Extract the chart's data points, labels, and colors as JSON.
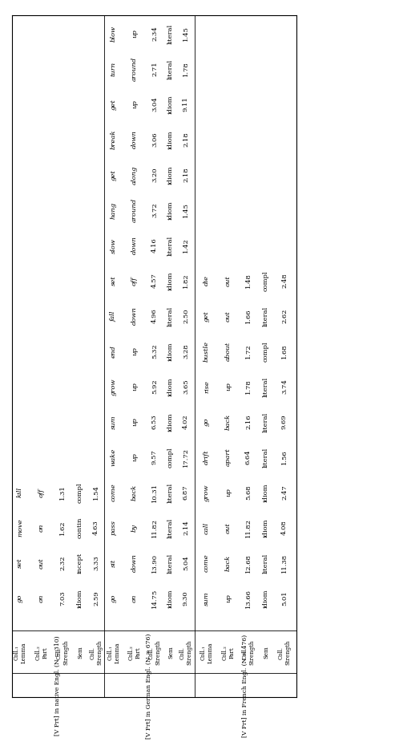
{
  "section1_header": "[V Prt] in native Engl. (N = 310)",
  "section2_header": "[V Prt] in German Engl. (N = 676)",
  "section3_header": "[V Prt] in French Engl. (N = 476)",
  "section1_data": [
    [
      "go",
      "on",
      "7.03",
      "idiom",
      "2.59"
    ],
    [
      "set",
      "out",
      "2.32",
      "incept",
      "3.33"
    ],
    [
      "move",
      "on",
      "1.62",
      "contin",
      "4.63"
    ],
    [
      "kill",
      "off",
      "1.31",
      "compl",
      "1.54"
    ]
  ],
  "section2_data": [
    [
      "go",
      "on",
      "14.75",
      "idiom",
      "9.30"
    ],
    [
      "sit",
      "down",
      "13.90",
      "literal",
      "5.04"
    ],
    [
      "pass",
      "by",
      "11.82",
      "literal",
      "2.14"
    ],
    [
      "come",
      "back",
      "10.31",
      "literal",
      "6.87"
    ],
    [
      "wake",
      "up",
      "9.57",
      "compl",
      "17.72"
    ],
    [
      "sum",
      "up",
      "6.53",
      "idiom",
      "4.02"
    ],
    [
      "grow",
      "up",
      "5.92",
      "idiom",
      "3.65"
    ],
    [
      "end",
      "up",
      "5.32",
      "idiom",
      "3.28"
    ],
    [
      "fall",
      "down",
      "4.96",
      "literal",
      "2.50"
    ],
    [
      "set",
      "off",
      "4.57",
      "idiom",
      "1.82"
    ],
    [
      "slow",
      "down",
      "4.16",
      "literal",
      "1.42"
    ],
    [
      "hang",
      "around",
      "3.72",
      "idiom",
      "1.45"
    ],
    [
      "get",
      "along",
      "3.20",
      "idiom",
      "2.18"
    ],
    [
      "break",
      "down",
      "3.06",
      "idiom",
      "2.18"
    ],
    [
      "get",
      "up",
      "3.04",
      "idiom",
      "9.11"
    ],
    [
      "turn",
      "around",
      "2.71",
      "literal",
      "1.78"
    ],
    [
      "blow",
      "up",
      "2.34",
      "literal",
      "1.45"
    ]
  ],
  "section3_data": [
    [
      "sum",
      "up",
      "13.66",
      "idiom",
      "5.01"
    ],
    [
      "come",
      "back",
      "12.68",
      "literal",
      "11.38"
    ],
    [
      "call",
      "out",
      "11.82",
      "idiom",
      "4.08"
    ],
    [
      "grow",
      "up",
      "5.68",
      "idiom",
      "2.47"
    ],
    [
      "drift",
      "apart",
      "6.64",
      "literal",
      "1.56"
    ],
    [
      "go",
      "back",
      "2.16",
      "literal",
      "9.69"
    ],
    [
      "rise",
      "up",
      "1.78",
      "literal",
      "3.74"
    ],
    [
      "bustle",
      "about",
      "1.72",
      "compl",
      "1.68"
    ],
    [
      "get",
      "out",
      "1.66",
      "literal",
      "2.62"
    ],
    [
      "die",
      "out",
      "1.48",
      "compl",
      "2.48"
    ]
  ]
}
